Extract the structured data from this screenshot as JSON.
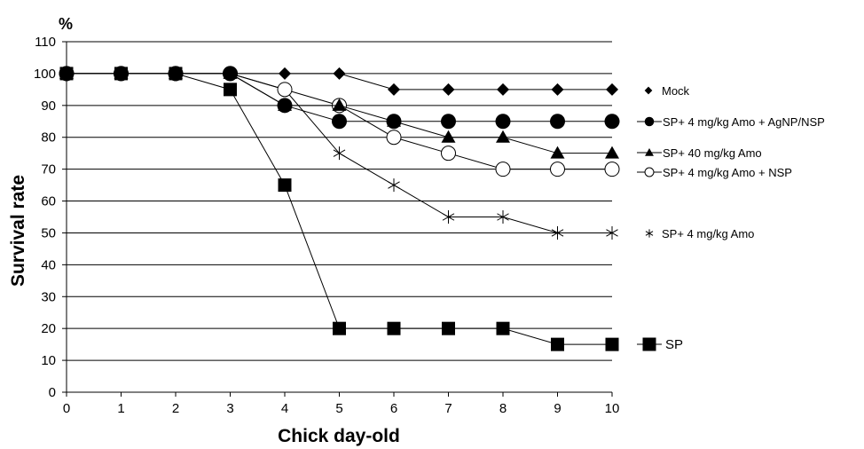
{
  "chart_data": {
    "type": "line",
    "xlabel": "Chick day-old",
    "ylabel": "Survival rate",
    "yunit": "%",
    "xlim": [
      0,
      10
    ],
    "ylim": [
      0,
      110
    ],
    "xticks": [
      0,
      1,
      2,
      3,
      4,
      5,
      6,
      7,
      8,
      9,
      10
    ],
    "yticks": [
      0,
      10,
      20,
      30,
      40,
      50,
      60,
      70,
      80,
      90,
      100,
      110
    ],
    "grid": "horizontal",
    "legend_position": "right",
    "series": [
      {
        "name": "Mock",
        "marker": "diamond-filled",
        "x": [
          0,
          1,
          2,
          3,
          4,
          5,
          6,
          7,
          8,
          9,
          10
        ],
        "values": [
          100,
          100,
          100,
          100,
          100,
          100,
          95,
          95,
          95,
          95,
          95
        ]
      },
      {
        "name": "SP+ 4 mg/kg Amo + AgNP/NSP",
        "marker": "circle-filled",
        "x": [
          0,
          1,
          2,
          3,
          4,
          5,
          6,
          7,
          8,
          9,
          10
        ],
        "values": [
          100,
          100,
          100,
          100,
          90,
          85,
          85,
          85,
          85,
          85,
          85
        ]
      },
      {
        "name": "SP+ 40 mg/kg Amo",
        "marker": "triangle-filled",
        "x": [
          0,
          1,
          2,
          3,
          4,
          5,
          6,
          7,
          8,
          9,
          10
        ],
        "values": [
          100,
          100,
          100,
          100,
          90,
          90,
          85,
          80,
          80,
          75,
          75
        ]
      },
      {
        "name": "SP+ 4 mg/kg Amo + NSP",
        "marker": "circle-open",
        "x": [
          0,
          1,
          2,
          3,
          4,
          5,
          6,
          7,
          8,
          9,
          10
        ],
        "values": [
          100,
          100,
          100,
          100,
          95,
          90,
          80,
          75,
          70,
          70,
          70
        ]
      },
      {
        "name": "SP+ 4 mg/kg Amo",
        "marker": "asterisk",
        "x": [
          0,
          1,
          2,
          3,
          4,
          5,
          6,
          7,
          8,
          9,
          10
        ],
        "values": [
          100,
          100,
          100,
          100,
          95,
          75,
          65,
          55,
          55,
          50,
          50
        ]
      },
      {
        "name": "SP",
        "marker": "square-filled",
        "x": [
          0,
          1,
          2,
          3,
          4,
          5,
          6,
          7,
          8,
          9,
          10
        ],
        "values": [
          100,
          100,
          100,
          95,
          65,
          20,
          20,
          20,
          20,
          15,
          15
        ]
      }
    ]
  }
}
